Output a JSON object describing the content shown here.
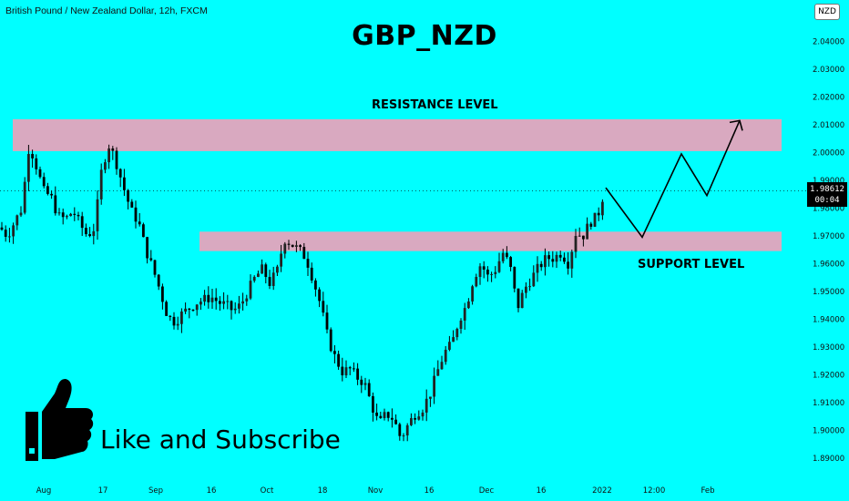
{
  "header": {
    "symbol_label": "British Pound / New Zealand Dollar, 12h, FXCM",
    "title": "GBP_NZD",
    "currency": "NZD"
  },
  "price_tag": {
    "price": "1.98612",
    "countdown": "00:04"
  },
  "annotations": {
    "resistance_label": "RESISTANCE LEVEL",
    "support_label": "SUPPORT LEVEL",
    "cta": "Like and Subscribe"
  },
  "icons": {
    "thumbs_up": "thumbs-up-icon"
  },
  "colors": {
    "background": "#00ffff",
    "zone": "#d9a9c0",
    "candle": "#000000",
    "projection": "#000000"
  },
  "chart_data": {
    "type": "candlestick",
    "title": "GBP_NZD",
    "ylim": [
      1.885,
      2.05
    ],
    "y_ticks": [
      "2.04000",
      "2.03000",
      "2.02000",
      "2.01000",
      "2.00000",
      "1.99000",
      "1.98000",
      "1.97000",
      "1.96000",
      "1.95000",
      "1.94000",
      "1.93000",
      "1.92000",
      "1.91000",
      "1.90000",
      "1.89000"
    ],
    "x_ticks": [
      "Aug",
      "17",
      "Sep",
      "16",
      "Oct",
      "18",
      "Nov",
      "16",
      "Dec",
      "16",
      "2022",
      "12:00",
      "Feb"
    ],
    "grid": false,
    "zones": [
      {
        "name": "RESISTANCE LEVEL",
        "low": 2.0005,
        "high": 2.012
      },
      {
        "name": "SUPPORT LEVEL",
        "low": 1.9645,
        "high": 1.9715
      }
    ],
    "last_price": 1.98612,
    "price_path": [
      [
        0,
        1.973
      ],
      [
        8,
        1.97
      ],
      [
        16,
        1.975
      ],
      [
        24,
        1.98
      ],
      [
        32,
        2.003
      ],
      [
        40,
        1.995
      ],
      [
        48,
        1.986
      ],
      [
        56,
        1.984
      ],
      [
        64,
        1.977
      ],
      [
        72,
        1.976
      ],
      [
        80,
        1.979
      ],
      [
        88,
        1.974
      ],
      [
        96,
        1.97
      ],
      [
        104,
        1.973
      ],
      [
        112,
        1.995
      ],
      [
        120,
        2.003
      ],
      [
        128,
        1.996
      ],
      [
        136,
        1.987
      ],
      [
        144,
        1.979
      ],
      [
        152,
        1.975
      ],
      [
        160,
        1.965
      ],
      [
        168,
        1.958
      ],
      [
        176,
        1.95
      ],
      [
        184,
        1.941
      ],
      [
        192,
        1.939
      ],
      [
        200,
        1.942
      ],
      [
        208,
        1.944
      ],
      [
        216,
        1.946
      ],
      [
        224,
        1.947
      ],
      [
        232,
        1.948
      ],
      [
        240,
        1.946
      ],
      [
        248,
        1.945
      ],
      [
        256,
        1.943
      ],
      [
        264,
        1.945
      ],
      [
        272,
        1.95
      ],
      [
        280,
        1.955
      ],
      [
        288,
        1.958
      ],
      [
        296,
        1.953
      ],
      [
        304,
        1.957
      ],
      [
        312,
        1.969
      ],
      [
        320,
        1.967
      ],
      [
        328,
        1.965
      ],
      [
        336,
        1.962
      ],
      [
        344,
        1.954
      ],
      [
        352,
        1.945
      ],
      [
        360,
        1.933
      ],
      [
        368,
        1.926
      ],
      [
        376,
        1.921
      ],
      [
        384,
        1.922
      ],
      [
        392,
        1.919
      ],
      [
        400,
        1.917
      ],
      [
        408,
        1.909
      ],
      [
        416,
        1.902
      ],
      [
        424,
        1.906
      ],
      [
        432,
        1.904
      ],
      [
        440,
        1.897
      ],
      [
        448,
        1.902
      ],
      [
        456,
        1.906
      ],
      [
        464,
        1.908
      ],
      [
        472,
        1.913
      ],
      [
        480,
        1.921
      ],
      [
        488,
        1.928
      ],
      [
        496,
        1.931
      ],
      [
        504,
        1.94
      ],
      [
        512,
        1.945
      ],
      [
        520,
        1.955
      ],
      [
        528,
        1.96
      ],
      [
        536,
        1.955
      ],
      [
        544,
        1.958
      ],
      [
        552,
        1.964
      ],
      [
        560,
        1.959
      ],
      [
        568,
        1.944
      ],
      [
        576,
        1.951
      ],
      [
        584,
        1.955
      ],
      [
        592,
        1.959
      ],
      [
        600,
        1.962
      ],
      [
        608,
        1.962
      ],
      [
        616,
        1.964
      ],
      [
        624,
        1.96
      ],
      [
        632,
        1.971
      ],
      [
        640,
        1.97
      ],
      [
        648,
        1.975
      ],
      [
        656,
        1.977
      ],
      [
        664,
        1.987
      ]
    ],
    "projection_path": [
      [
        665,
        1.9873
      ],
      [
        705,
        1.9695
      ],
      [
        748,
        1.9995
      ],
      [
        776,
        1.9845
      ],
      [
        812,
        2.0115
      ]
    ]
  }
}
